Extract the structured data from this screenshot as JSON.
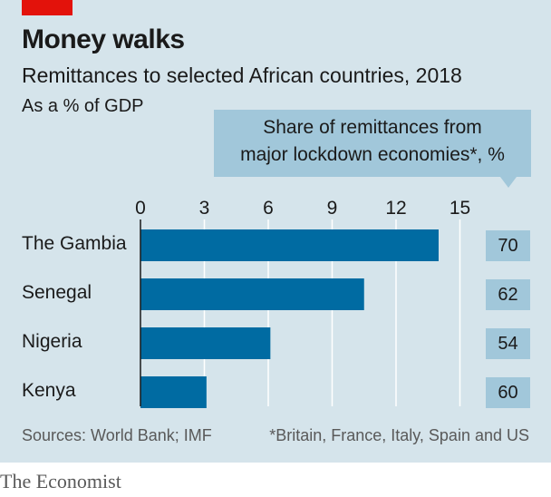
{
  "header": {
    "title": "Money walks",
    "subtitle": "Remittances to selected African countries, 2018",
    "unit": "As a % of GDP"
  },
  "share_box": {
    "line1": "Share of remittances from",
    "line2": "major lockdown economies*, %"
  },
  "footer": {
    "sources": "Sources: World Bank; IMF",
    "note": "*Britain, France, Italy, Spain and US",
    "brand": "The Economist"
  },
  "colors": {
    "background": "#d5e4eb",
    "bar": "#006ba2",
    "share_box": "#a1c7da",
    "accent_red": "#e3120b"
  },
  "chart_data": {
    "type": "bar",
    "orientation": "horizontal",
    "title": "Money walks",
    "subtitle": "Remittances to selected African countries, 2018",
    "xlabel": "As a % of GDP",
    "categories": [
      "The Gambia",
      "Senegal",
      "Nigeria",
      "Kenya"
    ],
    "values": [
      14.0,
      10.5,
      6.1,
      3.1
    ],
    "share_values": [
      "70",
      "62",
      "54",
      "60"
    ],
    "ticks": [
      "0",
      "3",
      "6",
      "9",
      "12",
      "15"
    ],
    "xlim": [
      0,
      15
    ],
    "grid": true
  }
}
